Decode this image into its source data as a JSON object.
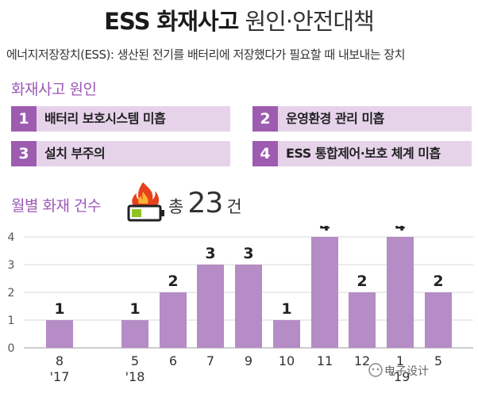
{
  "header": {
    "title_bold": "ESS 화재사고",
    "title_light": "원인·안전대책",
    "subtitle": "에너지저장장치(ESS): 생산된 전기를 배터리에 저장했다가 필요할 때 내보내는 장치"
  },
  "causes": {
    "title": "화재사고 원인",
    "items": [
      {
        "num": "1",
        "label": "배터리 보호시스템 미흡"
      },
      {
        "num": "2",
        "label": "운영환경 관리 미흡"
      },
      {
        "num": "3",
        "label": "설치 부주의"
      },
      {
        "num": "4",
        "label": "ESS 통합제어·보호 체계 미흡"
      }
    ]
  },
  "monthly": {
    "title": "월별 화재 건수",
    "total_label": "총",
    "total_value": "23",
    "total_unit": "건"
  },
  "chart_data": {
    "type": "bar",
    "categories": [
      "8 '17",
      "5 '18",
      "6",
      "7",
      "9",
      "10",
      "11",
      "12",
      "1 '19",
      "5"
    ],
    "tick_labels": [
      {
        "month": "8",
        "year": "'17"
      },
      {
        "month": "5",
        "year": "'18"
      },
      {
        "month": "6",
        "year": ""
      },
      {
        "month": "7",
        "year": ""
      },
      {
        "month": "9",
        "year": ""
      },
      {
        "month": "10",
        "year": ""
      },
      {
        "month": "11",
        "year": ""
      },
      {
        "month": "12",
        "year": ""
      },
      {
        "month": "1",
        "year": "'19"
      },
      {
        "month": "5",
        "year": ""
      }
    ],
    "values": [
      1,
      1,
      2,
      3,
      3,
      1,
      4,
      2,
      4,
      2
    ],
    "y_ticks": [
      "0",
      "1",
      "2",
      "3",
      "4"
    ],
    "ylim": [
      0,
      4
    ],
    "grid": true,
    "bar_color": "#b58cc6",
    "grid_color": "#d9d9d9"
  },
  "watermark": {
    "text": "电子设计"
  },
  "colors": {
    "accent": "#9d5cb0",
    "cause_bg": "#e6d3ea",
    "section_title": "#9b59b6"
  }
}
